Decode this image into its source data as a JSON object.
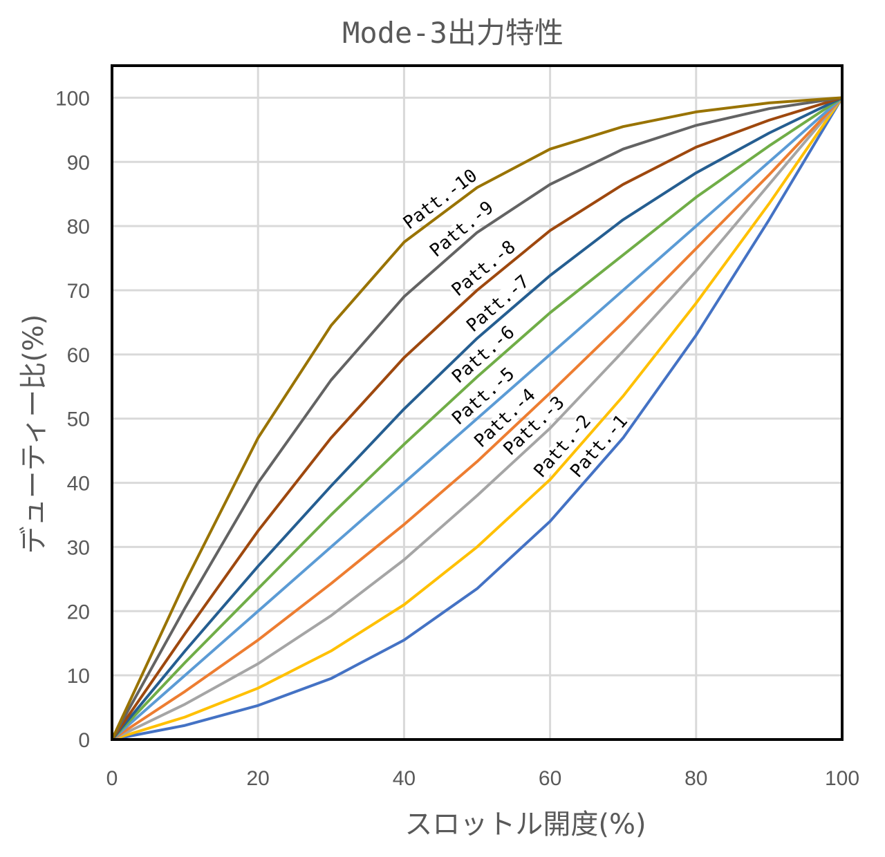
{
  "chart_data": {
    "type": "line",
    "title": "Mode-3出力特性",
    "xlabel": "スロットル開度(%)",
    "ylabel": "デューティー比(%)",
    "xlim": [
      0,
      100
    ],
    "ylim": [
      0,
      105
    ],
    "xticks": [
      "0",
      "20",
      "40",
      "60",
      "80",
      "100"
    ],
    "yticks": [
      "0",
      "10",
      "20",
      "30",
      "40",
      "50",
      "60",
      "70",
      "80",
      "90",
      "100"
    ],
    "grid": true,
    "legend": "none",
    "x": [
      0,
      10,
      20,
      30,
      40,
      50,
      60,
      70,
      80,
      90,
      100
    ],
    "series": [
      {
        "name": "Patt.-1",
        "color": "#4472C4",
        "values": [
          0,
          2.2,
          5.3,
          9.5,
          15.5,
          23.5,
          34,
          47,
          63,
          81,
          100
        ]
      },
      {
        "name": "Patt.-2",
        "color": "#FFC000",
        "values": [
          0,
          3.5,
          8,
          13.8,
          21,
          30,
          40.5,
          53.5,
          68,
          83.5,
          100
        ]
      },
      {
        "name": "Patt.-3",
        "color": "#A5A5A5",
        "values": [
          0,
          5.5,
          11.8,
          19.3,
          28,
          38,
          48.5,
          60.5,
          73,
          86.5,
          100
        ]
      },
      {
        "name": "Patt.-4",
        "color": "#ED7D31",
        "values": [
          0,
          7.5,
          15.5,
          24.3,
          33.5,
          43.3,
          54,
          65,
          76.5,
          88,
          100
        ]
      },
      {
        "name": "Patt.-5",
        "color": "#5B9BD5",
        "values": [
          0,
          10,
          20,
          30,
          40,
          50,
          60,
          70,
          80,
          90,
          100
        ]
      },
      {
        "name": "Patt.-6",
        "color": "#70AD47",
        "values": [
          0,
          12,
          23.5,
          35,
          46,
          56.5,
          66.5,
          75.5,
          84.5,
          92.5,
          100
        ]
      },
      {
        "name": "Patt.-7",
        "color": "#255E91",
        "values": [
          0,
          13.8,
          27,
          39.5,
          51.5,
          62.5,
          72.3,
          81,
          88.3,
          94.5,
          100
        ]
      },
      {
        "name": "Patt.-8",
        "color": "#9E480E",
        "values": [
          0,
          16.5,
          32.5,
          47,
          59.5,
          70,
          79.3,
          86.5,
          92.3,
          96.5,
          100
        ]
      },
      {
        "name": "Patt.-9",
        "color": "#636363",
        "values": [
          0,
          20.5,
          40,
          56,
          69,
          79,
          86.5,
          92,
          95.7,
          98.3,
          100
        ]
      },
      {
        "name": "Patt.-10",
        "color": "#997300",
        "values": [
          0,
          24.5,
          47,
          64.5,
          77.5,
          86,
          92,
          95.5,
          97.8,
          99.2,
          100
        ]
      }
    ]
  }
}
